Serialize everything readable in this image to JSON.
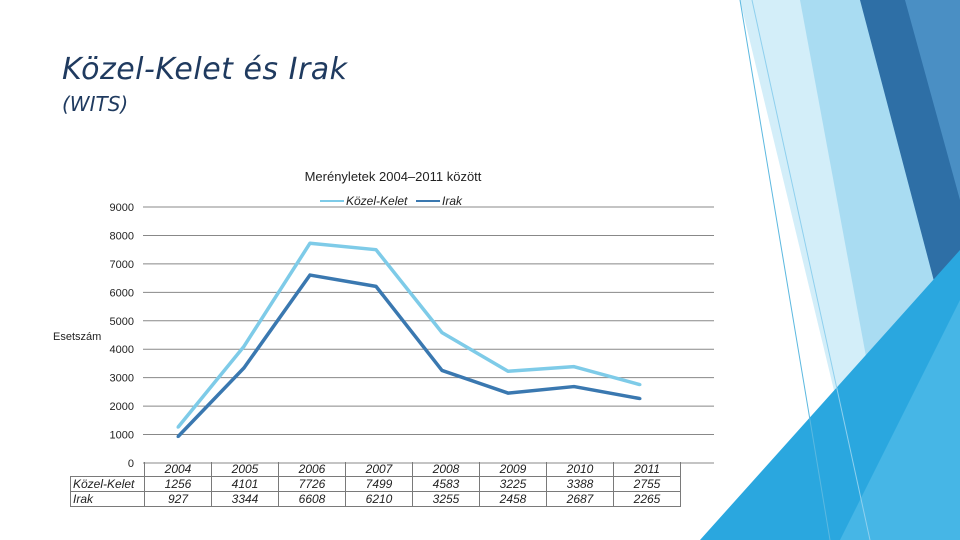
{
  "slide": {
    "title": "Közel-Kelet és Irak",
    "subtitle": "(WITS)"
  },
  "colors": {
    "series1": "#7ecbe8",
    "series2": "#3a78b0",
    "grid": "#888888",
    "title": "#1f3a5f"
  },
  "chart_data": {
    "type": "line",
    "title": "Merényletek 2004–2011 között",
    "ylabel": "Esetszám",
    "xlabel": "",
    "ylim": [
      0,
      9000
    ],
    "yticks": [
      "0",
      "1000",
      "2000",
      "3000",
      "4000",
      "5000",
      "6000",
      "7000",
      "8000",
      "9000"
    ],
    "categories": [
      "2004",
      "2005",
      "2006",
      "2007",
      "2008",
      "2009",
      "2010",
      "2011"
    ],
    "legend_position": "top",
    "grid": true,
    "series": [
      {
        "name": "Közel-Kelet",
        "values": [
          1256,
          4101,
          7726,
          7499,
          4583,
          3225,
          3388,
          2755
        ],
        "labels": [
          "1256",
          "4101",
          "7726",
          "7499",
          "4583",
          "3225",
          "3388",
          "2755"
        ]
      },
      {
        "name": "Irak",
        "values": [
          927,
          3344,
          6608,
          6210,
          3255,
          2458,
          2687,
          2265
        ],
        "labels": [
          "927",
          "3344",
          "6608",
          "6210",
          "3255",
          "2458",
          "2687",
          "2265"
        ]
      }
    ]
  }
}
